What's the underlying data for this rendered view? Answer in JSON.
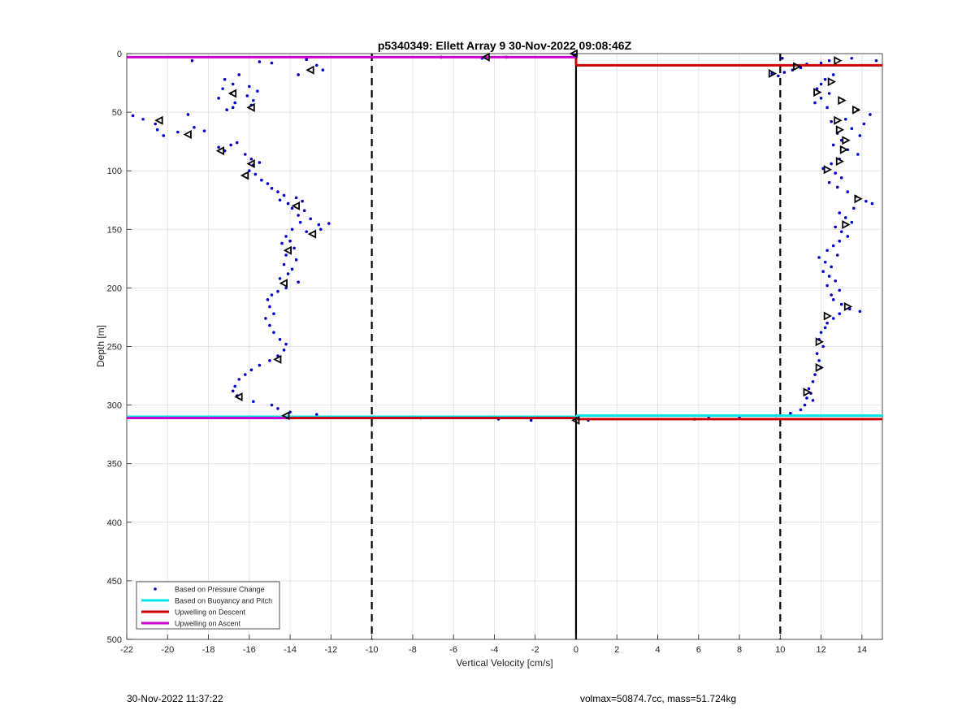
{
  "chart_data": {
    "type": "scatter",
    "title": "p5340349: Ellett Array 9 30-Nov-2022 09:08:46Z",
    "xlabel": "Vertical Velocity [cm/s]",
    "ylabel": "Depth [m]",
    "xlim": [
      -22,
      15
    ],
    "ylim": [
      0,
      500
    ],
    "y_reversed": true,
    "grid": true,
    "x_ticks": [
      -22,
      -20,
      -18,
      -16,
      -14,
      -12,
      -10,
      -8,
      -6,
      -4,
      -2,
      0,
      2,
      4,
      6,
      8,
      10,
      12,
      14
    ],
    "y_ticks": [
      0,
      50,
      100,
      150,
      200,
      250,
      300,
      350,
      400,
      450,
      500
    ],
    "legend_position": "bottom-left",
    "legend": [
      {
        "label": "Based on Pressure Change",
        "color": "#0000cc",
        "kind": "dot"
      },
      {
        "label": "Based on Buoyancy and Pitch",
        "color": "#00e5e5",
        "kind": "line"
      },
      {
        "label": "Upwelling on Descent",
        "color": "#cc0000",
        "kind": "line"
      },
      {
        "label": "Upwelling on Ascent",
        "color": "#cc00cc",
        "kind": "line"
      }
    ],
    "reference_lines": [
      {
        "x": -10,
        "style": "dashed",
        "color": "#000000"
      },
      {
        "x": 0,
        "style": "solid",
        "color": "#000000"
      },
      {
        "x": 10,
        "style": "dashed",
        "color": "#000000"
      }
    ],
    "series": [
      {
        "name": "Based on Pressure Change",
        "color": "#0000cc",
        "points": [
          [
            -18.8,
            6
          ],
          [
            -16.5,
            18
          ],
          [
            -17.2,
            22
          ],
          [
            -16.8,
            26
          ],
          [
            -17.3,
            30
          ],
          [
            -16.9,
            34
          ],
          [
            -17.5,
            38
          ],
          [
            -16.7,
            42
          ],
          [
            -16.8,
            46
          ],
          [
            -17.1,
            48
          ],
          [
            -16.0,
            28
          ],
          [
            -15.6,
            32
          ],
          [
            -16.1,
            36
          ],
          [
            -15.8,
            40
          ],
          [
            -15.9,
            44
          ],
          [
            -14.9,
            8
          ],
          [
            -13.2,
            5
          ],
          [
            -12.7,
            10
          ],
          [
            -12.4,
            14
          ],
          [
            -13.6,
            18
          ],
          [
            -15.5,
            7
          ],
          [
            -21.7,
            53
          ],
          [
            -21.2,
            56
          ],
          [
            -20.6,
            60
          ],
          [
            -20.5,
            65
          ],
          [
            -20.2,
            70
          ],
          [
            -19.5,
            67
          ],
          [
            -19.0,
            52
          ],
          [
            -18.7,
            63
          ],
          [
            -18.2,
            66
          ],
          [
            -17.5,
            80
          ],
          [
            -17.2,
            83
          ],
          [
            -16.9,
            78
          ],
          [
            -16.6,
            76
          ],
          [
            -16.2,
            86
          ],
          [
            -15.9,
            90
          ],
          [
            -15.5,
            93
          ],
          [
            -15.8,
            95
          ],
          [
            -16.0,
            100
          ],
          [
            -15.7,
            103
          ],
          [
            -15.4,
            108
          ],
          [
            -15.1,
            111
          ],
          [
            -14.9,
            115
          ],
          [
            -14.6,
            118
          ],
          [
            -14.3,
            121
          ],
          [
            -14.5,
            125
          ],
          [
            -14.1,
            128
          ],
          [
            -13.7,
            123
          ],
          [
            -13.4,
            126
          ],
          [
            -13.9,
            132
          ],
          [
            -13.3,
            134
          ],
          [
            -13.6,
            138
          ],
          [
            -13.0,
            141
          ],
          [
            -13.5,
            144
          ],
          [
            -12.6,
            146
          ],
          [
            -12.1,
            145
          ],
          [
            -12.5,
            150
          ],
          [
            -13.2,
            152
          ],
          [
            -13.9,
            150
          ],
          [
            -14.2,
            156
          ],
          [
            -14.0,
            160
          ],
          [
            -14.4,
            162
          ],
          [
            -13.8,
            166
          ],
          [
            -14.2,
            172
          ],
          [
            -13.7,
            176
          ],
          [
            -14.3,
            180
          ],
          [
            -13.9,
            184
          ],
          [
            -14.1,
            188
          ],
          [
            -14.5,
            192
          ],
          [
            -13.6,
            195
          ],
          [
            -14.2,
            200
          ],
          [
            -14.6,
            203
          ],
          [
            -14.9,
            206
          ],
          [
            -15.1,
            210
          ],
          [
            -15.0,
            216
          ],
          [
            -14.8,
            222
          ],
          [
            -15.2,
            226
          ],
          [
            -15.0,
            232
          ],
          [
            -14.8,
            238
          ],
          [
            -14.5,
            244
          ],
          [
            -14.2,
            248
          ],
          [
            -14.3,
            253
          ],
          [
            -14.6,
            258
          ],
          [
            -15.0,
            262
          ],
          [
            -15.5,
            266
          ],
          [
            -15.9,
            270
          ],
          [
            -16.2,
            274
          ],
          [
            -16.5,
            278
          ],
          [
            -16.7,
            284
          ],
          [
            -16.8,
            288
          ],
          [
            -16.6,
            292
          ],
          [
            -15.8,
            297
          ],
          [
            -14.9,
            300
          ],
          [
            -14.6,
            303
          ],
          [
            -14.0,
            306
          ],
          [
            -12.7,
            308
          ],
          [
            -7.6,
            311
          ],
          [
            -3.8,
            312
          ],
          [
            -2.2,
            313
          ],
          [
            0.6,
            313
          ],
          [
            5.8,
            312
          ],
          [
            6.5,
            311
          ],
          [
            8.0,
            310
          ],
          [
            -6.6,
            3
          ],
          [
            -3.4,
            3
          ],
          [
            -4.6,
            4
          ],
          [
            -0.1,
            1
          ],
          [
            10.1,
            4
          ],
          [
            9.6,
            17
          ],
          [
            9.9,
            19
          ],
          [
            10.2,
            16
          ],
          [
            10.6,
            14
          ],
          [
            11.3,
            9
          ],
          [
            11.0,
            12
          ],
          [
            12.0,
            8
          ],
          [
            12.4,
            6
          ],
          [
            13.5,
            4
          ],
          [
            14.7,
            6
          ],
          [
            12.6,
            18
          ],
          [
            12.2,
            22
          ],
          [
            12.0,
            26
          ],
          [
            11.8,
            30
          ],
          [
            12.4,
            34
          ],
          [
            12.0,
            38
          ],
          [
            11.7,
            42
          ],
          [
            12.3,
            46
          ],
          [
            13.8,
            48
          ],
          [
            14.4,
            52
          ],
          [
            13.2,
            56
          ],
          [
            12.5,
            58
          ],
          [
            14.1,
            60
          ],
          [
            13.5,
            64
          ],
          [
            12.8,
            68
          ],
          [
            13.9,
            70
          ],
          [
            13.0,
            74
          ],
          [
            12.6,
            78
          ],
          [
            13.3,
            82
          ],
          [
            13.8,
            86
          ],
          [
            12.9,
            90
          ],
          [
            12.5,
            94
          ],
          [
            12.1,
            98
          ],
          [
            12.7,
            102
          ],
          [
            13.0,
            106
          ],
          [
            12.4,
            110
          ],
          [
            12.8,
            114
          ],
          [
            13.3,
            118
          ],
          [
            13.7,
            122
          ],
          [
            14.2,
            126
          ],
          [
            14.5,
            128
          ],
          [
            13.6,
            132
          ],
          [
            12.9,
            136
          ],
          [
            13.2,
            140
          ],
          [
            13.5,
            144
          ],
          [
            12.7,
            148
          ],
          [
            13.0,
            152
          ],
          [
            13.3,
            156
          ],
          [
            12.9,
            160
          ],
          [
            12.6,
            164
          ],
          [
            12.3,
            168
          ],
          [
            12.8,
            172
          ],
          [
            11.9,
            174
          ],
          [
            12.2,
            178
          ],
          [
            12.5,
            182
          ],
          [
            12.1,
            186
          ],
          [
            12.4,
            190
          ],
          [
            12.7,
            194
          ],
          [
            12.3,
            198
          ],
          [
            12.9,
            202
          ],
          [
            12.5,
            206
          ],
          [
            12.6,
            210
          ],
          [
            13.0,
            214
          ],
          [
            13.4,
            218
          ],
          [
            13.9,
            220
          ],
          [
            12.9,
            222
          ],
          [
            12.6,
            226
          ],
          [
            12.3,
            230
          ],
          [
            12.2,
            234
          ],
          [
            12.0,
            238
          ],
          [
            11.9,
            244
          ],
          [
            12.1,
            250
          ],
          [
            11.8,
            256
          ],
          [
            11.9,
            262
          ],
          [
            12.0,
            268
          ],
          [
            11.7,
            274
          ],
          [
            11.6,
            280
          ],
          [
            11.4,
            286
          ],
          [
            11.5,
            290
          ],
          [
            11.3,
            294
          ],
          [
            11.6,
            296
          ],
          [
            11.2,
            300
          ],
          [
            11.0,
            304
          ],
          [
            10.5,
            307
          ],
          [
            9.8,
            309
          ]
        ]
      },
      {
        "name": "Based on Buoyancy and Pitch",
        "color": "#00e5e5",
        "segments": [
          [
            -22,
            310,
            0,
            310
          ],
          [
            0,
            309,
            15,
            309
          ]
        ]
      },
      {
        "name": "Upwelling on Descent",
        "color": "#cc0000",
        "segments": [
          [
            -17.5,
            311,
            0,
            311
          ],
          [
            0,
            312,
            15,
            312
          ],
          [
            0,
            10,
            15,
            10
          ],
          [
            0,
            4,
            0,
            10
          ]
        ]
      },
      {
        "name": "Upwelling on Ascent",
        "color": "#cc00cc",
        "segments": [
          [
            -22,
            3,
            0,
            3
          ],
          [
            -22,
            311,
            -14,
            311
          ]
        ]
      },
      {
        "name": "ascent markers",
        "color": "#000000",
        "marker": "triangle-left",
        "points": [
          [
            -0.1,
            0
          ],
          [
            -4.4,
            3
          ],
          [
            -13.0,
            14
          ],
          [
            -16.8,
            34
          ],
          [
            -15.9,
            46
          ],
          [
            -20.4,
            57
          ],
          [
            -19.0,
            69
          ],
          [
            -17.4,
            83
          ],
          [
            -15.9,
            94
          ],
          [
            -16.2,
            104
          ],
          [
            -13.7,
            130
          ],
          [
            -12.9,
            154
          ],
          [
            -14.1,
            168
          ],
          [
            -14.3,
            196
          ],
          [
            -14.6,
            261
          ],
          [
            -16.5,
            293
          ],
          [
            -14.2,
            309
          ],
          [
            0,
            313
          ]
        ]
      },
      {
        "name": "descent markers",
        "color": "#000000",
        "marker": "triangle-right",
        "points": [
          [
            12.8,
            6
          ],
          [
            10.8,
            11
          ],
          [
            9.6,
            17
          ],
          [
            12.5,
            24
          ],
          [
            11.8,
            33
          ],
          [
            13.0,
            40
          ],
          [
            13.7,
            48
          ],
          [
            12.8,
            57
          ],
          [
            12.9,
            65
          ],
          [
            13.2,
            74
          ],
          [
            13.1,
            82
          ],
          [
            12.9,
            92
          ],
          [
            12.3,
            99
          ],
          [
            13.8,
            124
          ],
          [
            13.2,
            146
          ],
          [
            13.3,
            216
          ],
          [
            12.3,
            224
          ],
          [
            11.9,
            246
          ],
          [
            11.9,
            268
          ],
          [
            11.3,
            289
          ]
        ]
      }
    ]
  },
  "footer": {
    "timestamp": "30-Nov-2022 11:37:22",
    "summary": "volmax=50874.7cc, mass=51.724kg"
  }
}
